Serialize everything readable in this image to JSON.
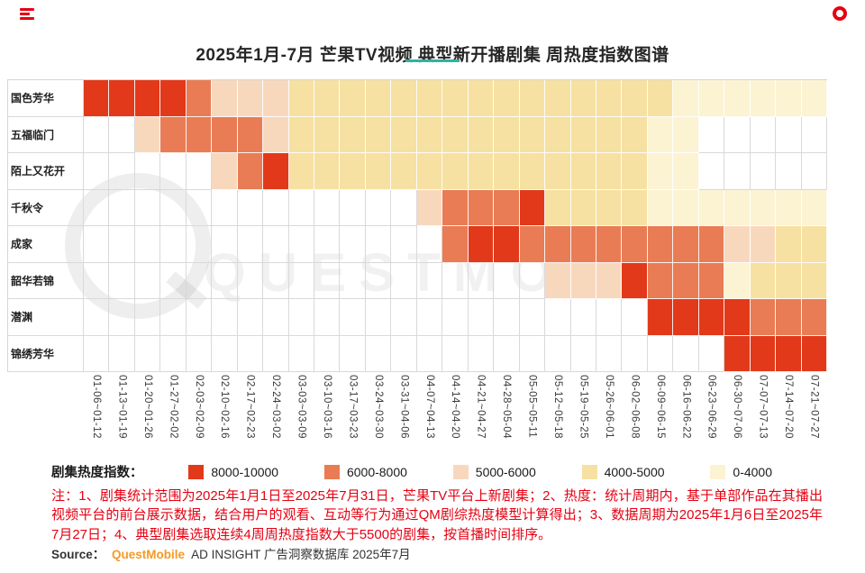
{
  "page": {
    "title": "2025年1月-7月 芒果TV视频 典型新开播剧集 周热度指数图谱",
    "watermark": "QUESTMOBILE"
  },
  "theme": {
    "accent": "#2fb3a3",
    "brand-red": "#e60012",
    "note-red": "#e60012",
    "brand-orange": "#f59a23"
  },
  "chart_data": {
    "type": "heatmap",
    "title": "2025年1月-7月 芒果TV视频 典型新开播剧集 周热度指数图谱",
    "x_labels": [
      "01-06~01-12",
      "01-13~01-19",
      "01-20~01-26",
      "01-27~02-02",
      "02-03~02-09",
      "02-10~02-16",
      "02-17~02-23",
      "02-24~03-02",
      "03-03~03-09",
      "03-10~03-16",
      "03-17~03-23",
      "03-24~03-30",
      "03-31~04-06",
      "04-07~04-13",
      "04-14~04-20",
      "04-21~04-27",
      "04-28~05-04",
      "05-05~05-11",
      "05-12~05-18",
      "05-19~05-25",
      "05-26~06-01",
      "06-02~06-08",
      "06-09~06-15",
      "06-16~06-22",
      "06-23~06-29",
      "06-30~07-06",
      "07-07~07-13",
      "07-14~07-20",
      "07-21~07-27"
    ],
    "levels": {
      "5": "8000-10000",
      "4": "6000-8000",
      "3": "5000-6000",
      "2": "4000-5000",
      "1": "0-4000"
    },
    "colors": {
      "5": "#e2391a",
      "4": "#e97c54",
      "3": "#f8d8bd",
      "2": "#f6e1a2",
      "1": "#fcf3d3"
    },
    "legend": {
      "label": "剧集热度指数：",
      "items": [
        {
          "label": "8000-10000",
          "level": "5"
        },
        {
          "label": "6000-8000",
          "level": "4"
        },
        {
          "label": "5000-6000",
          "level": "3"
        },
        {
          "label": "4000-5000",
          "level": "2"
        },
        {
          "label": "0-4000",
          "level": "1"
        }
      ]
    },
    "rows": [
      {
        "name": "国色芳华",
        "cells": [
          5,
          5,
          5,
          5,
          4,
          3,
          3,
          3,
          2,
          2,
          2,
          2,
          2,
          2,
          2,
          2,
          2,
          2,
          2,
          2,
          2,
          2,
          2,
          1,
          1,
          1,
          1,
          1,
          1
        ]
      },
      {
        "name": "五福临门",
        "cells": [
          0,
          0,
          3,
          4,
          4,
          4,
          4,
          3,
          2,
          2,
          2,
          2,
          2,
          2,
          2,
          2,
          2,
          2,
          2,
          2,
          2,
          2,
          1,
          1,
          0,
          0,
          0,
          0,
          0
        ]
      },
      {
        "name": "陌上又花开",
        "cells": [
          0,
          0,
          0,
          0,
          0,
          3,
          4,
          5,
          2,
          2,
          2,
          2,
          2,
          2,
          2,
          2,
          2,
          2,
          2,
          2,
          2,
          2,
          1,
          1,
          0,
          0,
          0,
          0,
          0
        ]
      },
      {
        "name": "千秋令",
        "cells": [
          0,
          0,
          0,
          0,
          0,
          0,
          0,
          0,
          0,
          0,
          0,
          0,
          0,
          3,
          4,
          4,
          4,
          5,
          2,
          2,
          2,
          2,
          1,
          1,
          1,
          1,
          1,
          1,
          1
        ]
      },
      {
        "name": "成家",
        "cells": [
          0,
          0,
          0,
          0,
          0,
          0,
          0,
          0,
          0,
          0,
          0,
          0,
          0,
          0,
          4,
          5,
          5,
          4,
          4,
          4,
          4,
          4,
          4,
          4,
          4,
          3,
          3,
          2,
          2
        ]
      },
      {
        "name": "韶华若锦",
        "cells": [
          0,
          0,
          0,
          0,
          0,
          0,
          0,
          0,
          0,
          0,
          0,
          0,
          0,
          0,
          0,
          0,
          0,
          0,
          3,
          3,
          3,
          5,
          4,
          4,
          4,
          1,
          2,
          2,
          2
        ]
      },
      {
        "name": "潜渊",
        "cells": [
          0,
          0,
          0,
          0,
          0,
          0,
          0,
          0,
          0,
          0,
          0,
          0,
          0,
          0,
          0,
          0,
          0,
          0,
          0,
          0,
          0,
          0,
          5,
          5,
          5,
          5,
          4,
          4,
          4
        ]
      },
      {
        "name": "锦绣芳华",
        "cells": [
          0,
          0,
          0,
          0,
          0,
          0,
          0,
          0,
          0,
          0,
          0,
          0,
          0,
          0,
          0,
          0,
          0,
          0,
          0,
          0,
          0,
          0,
          0,
          0,
          0,
          5,
          5,
          5,
          5
        ]
      }
    ]
  },
  "note": "注：1、剧集统计范围为2025年1月1日至2025年7月31日，芒果TV平台上新剧集；2、热度：统计周期内，基于单部作品在其播出视频平台的前台展示数据，结合用户的观看、互动等行为通过QM剧综热度模型计算得出；3、数据周期为2025年1月6日至2025年7月27日；4、典型剧集选取连续4周周热度指数大于5500的剧集，按首播时间排序。",
  "source": {
    "prefix": "Source：",
    "brand": "QuestMobile",
    "suffix": "AD INSIGHT 广告洞察数据库 2025年7月"
  }
}
